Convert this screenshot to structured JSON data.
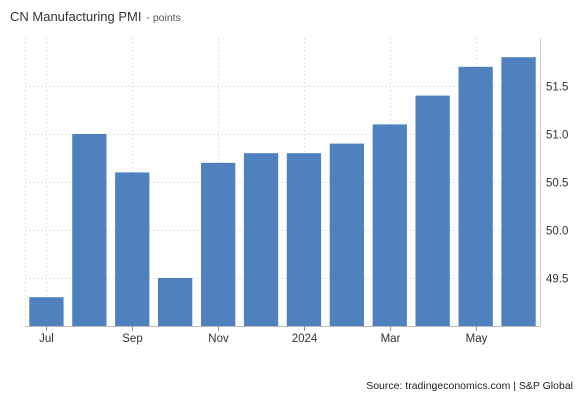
{
  "chart_data": {
    "type": "bar",
    "title": "CN Manufacturing PMI",
    "subtitle": " - points",
    "categories": [
      "Jul 2023",
      "Aug 2023",
      "Sep 2023",
      "Oct 2023",
      "Nov 2023",
      "Dec 2023",
      "Jan 2024",
      "Feb 2024",
      "Mar 2024",
      "Apr 2024",
      "May 2024",
      "Jun 2024"
    ],
    "values": [
      49.3,
      51.0,
      50.6,
      49.5,
      50.7,
      50.8,
      50.8,
      50.9,
      51.1,
      51.4,
      51.7,
      51.8
    ],
    "x_tick_labels": [
      {
        "category_index": 0,
        "label": "Jul"
      },
      {
        "category_index": 2,
        "label": "Sep"
      },
      {
        "category_index": 4,
        "label": "Nov"
      },
      {
        "category_index": 6,
        "label": "2024"
      },
      {
        "category_index": 8,
        "label": "Mar"
      },
      {
        "category_index": 10,
        "label": "May"
      }
    ],
    "y_ticks": [
      49.5,
      50.0,
      50.5,
      51.0,
      51.5
    ],
    "y_tick_labels": [
      "49.5",
      "50.0",
      "50.5",
      "51.0",
      "51.5"
    ],
    "ylim": [
      49.0,
      52.0
    ],
    "y_axis_side": "right",
    "grid": true,
    "bar_color": "#4e81bd",
    "xlabel": "",
    "ylabel": ""
  },
  "source": "Source: tradingeconomics.com | S&P Global"
}
